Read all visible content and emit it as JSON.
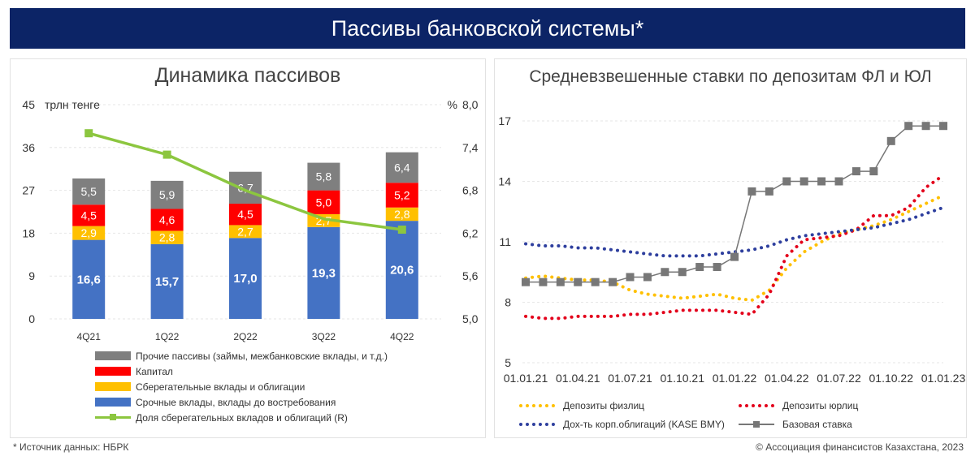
{
  "header": {
    "title": "Пассивы банковской системы*"
  },
  "footer": {
    "source": "* Источник данных: НБРК",
    "copyright": "© Ассоциация финансистов Казахстана, 2023"
  },
  "colors": {
    "navy": "#0c2466",
    "blue": "#4472c4",
    "yellow": "#ffc000",
    "red": "#ff0000",
    "grey": "#7f7f7f",
    "green": "#8cc63f",
    "orange": "#ffc000",
    "darkred": "#e3001b",
    "darkblue": "#2e3f9e"
  },
  "chart_data": [
    {
      "type": "bar",
      "title": "Динамика пассивов",
      "ylabel": "трлн тенге",
      "y2label": "%",
      "ylim": [
        0,
        45
      ],
      "y2lim": [
        5.0,
        8.0
      ],
      "yticks": [
        "0",
        "9",
        "18",
        "27",
        "36",
        "45"
      ],
      "y2ticks": [
        "5,0",
        "5,6",
        "6,2",
        "6,8",
        "7,4",
        "8,0"
      ],
      "categories": [
        "4Q21",
        "1Q22",
        "2Q22",
        "3Q22",
        "4Q22"
      ],
      "stacked": true,
      "series": [
        {
          "name": "Срочные вклады, вклады до востребования",
          "color": "#4472c4",
          "values": [
            16.6,
            15.7,
            17.0,
            19.3,
            20.6
          ],
          "labels": [
            "16,6",
            "15,7",
            "17,0",
            "19,3",
            "20,6"
          ]
        },
        {
          "name": "Сберегательные вклады и облигации",
          "color": "#ffc000",
          "values": [
            2.9,
            2.8,
            2.7,
            2.7,
            2.8
          ],
          "labels": [
            "2,9",
            "2,8",
            "2,7",
            "2,7",
            "2,8"
          ]
        },
        {
          "name": "Капитал",
          "color": "#ff0000",
          "values": [
            4.5,
            4.6,
            4.5,
            5.0,
            5.2
          ],
          "labels": [
            "4,5",
            "4,6",
            "4,5",
            "5,0",
            "5,2"
          ]
        },
        {
          "name": "Прочие пассивы (займы, межбанковские вклады, и т.д.)",
          "color": "#7f7f7f",
          "values": [
            5.5,
            5.9,
            6.7,
            5.8,
            6.4
          ],
          "labels": [
            "5,5",
            "5,9",
            "6,7",
            "5,8",
            "6,4"
          ]
        }
      ],
      "line_series": {
        "name": "Доля сберегательных вкладов и облигаций (R)",
        "color": "#8cc63f",
        "values": [
          7.6,
          7.3,
          6.8,
          6.4,
          6.25
        ]
      },
      "legend": [
        "Прочие пассивы (займы, межбанковские вклады, и т.д.)",
        "Капитал",
        "Сберегательные вклады и облигации",
        "Срочные вклады, вклады до востребования",
        "Доля сберегательных вкладов и облигаций (R)"
      ],
      "legend_placement": "bottom"
    },
    {
      "type": "line",
      "title": "Средневзвешенные ставки по депозитам ФЛ и ЮЛ",
      "ylim": [
        5,
        17
      ],
      "yticks": [
        "5",
        "8",
        "11",
        "14",
        "17"
      ],
      "xticks": [
        "01.01.21",
        "01.04.21",
        "01.07.21",
        "01.10.21",
        "01.01.22",
        "01.04.22",
        "01.07.22",
        "01.10.22",
        "01.01.23"
      ],
      "x_months": [
        "01.21",
        "02.21",
        "03.21",
        "04.21",
        "05.21",
        "06.21",
        "07.21",
        "08.21",
        "09.21",
        "10.21",
        "11.21",
        "12.21",
        "01.22",
        "02.22",
        "03.22",
        "04.22",
        "05.22",
        "06.22",
        "07.22",
        "08.22",
        "09.22",
        "10.22",
        "11.22",
        "12.22",
        "01.23"
      ],
      "series": [
        {
          "name": "Депозиты физлиц",
          "color": "#ffc000",
          "style": "dotted",
          "values": [
            9.2,
            9.3,
            9.2,
            9.1,
            9.1,
            9.0,
            8.6,
            8.4,
            8.3,
            8.2,
            8.3,
            8.4,
            8.2,
            8.1,
            8.6,
            9.7,
            10.5,
            11.0,
            11.4,
            11.6,
            11.8,
            12.1,
            12.5,
            12.9,
            13.3
          ]
        },
        {
          "name": "Депозиты юрлиц",
          "color": "#e3001b",
          "style": "dotted",
          "values": [
            7.3,
            7.2,
            7.2,
            7.3,
            7.3,
            7.3,
            7.4,
            7.4,
            7.5,
            7.6,
            7.6,
            7.6,
            7.5,
            7.4,
            8.4,
            10.3,
            11.1,
            11.2,
            11.3,
            11.6,
            12.3,
            12.3,
            12.7,
            13.7,
            14.3
          ]
        },
        {
          "name": "Дох-ть корп.облигаций (KASE BMY)",
          "color": "#2e3f9e",
          "style": "dotted",
          "values": [
            10.9,
            10.8,
            10.8,
            10.7,
            10.7,
            10.6,
            10.5,
            10.4,
            10.3,
            10.3,
            10.3,
            10.4,
            10.5,
            10.6,
            10.8,
            11.1,
            11.3,
            11.4,
            11.5,
            11.6,
            11.7,
            11.9,
            12.1,
            12.4,
            12.7
          ]
        },
        {
          "name": "Базовая ставка",
          "color": "#777777",
          "style": "solid-markers",
          "values": [
            9.0,
            9.0,
            9.0,
            9.0,
            9.0,
            9.0,
            9.25,
            9.25,
            9.5,
            9.5,
            9.75,
            9.75,
            10.25,
            13.5,
            13.5,
            14.0,
            14.0,
            14.0,
            14.0,
            14.5,
            14.5,
            16.0,
            16.75,
            16.75,
            16.75
          ]
        }
      ],
      "legend_placement": "bottom"
    }
  ]
}
